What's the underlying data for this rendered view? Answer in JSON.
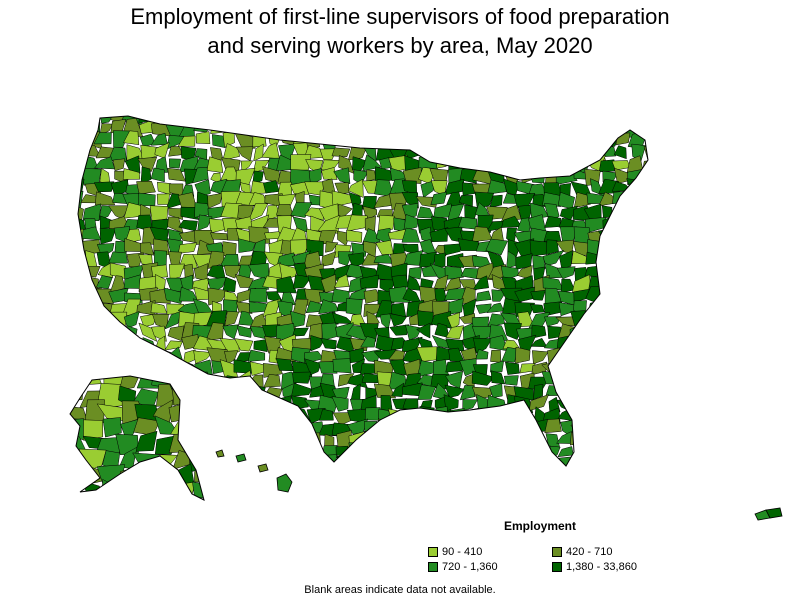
{
  "title": {
    "line1": "Employment of first-line supervisors of food preparation",
    "line2": "and serving workers by area, May 2020"
  },
  "legend": {
    "title": "Employment",
    "items": [
      {
        "label": "90 - 410",
        "color": "#9acd32"
      },
      {
        "label": "420 - 710",
        "color": "#6b8e23"
      },
      {
        "label": "720 - 1,360",
        "color": "#228b22"
      },
      {
        "label": "1,380 - 33,860",
        "color": "#006400"
      }
    ]
  },
  "footnote": "Blank areas indicate data not available.",
  "colors": {
    "outline": "#000000",
    "low": "#9acd32",
    "midlow": "#6b8e23",
    "midhigh": "#228b22",
    "high": "#006400"
  }
}
